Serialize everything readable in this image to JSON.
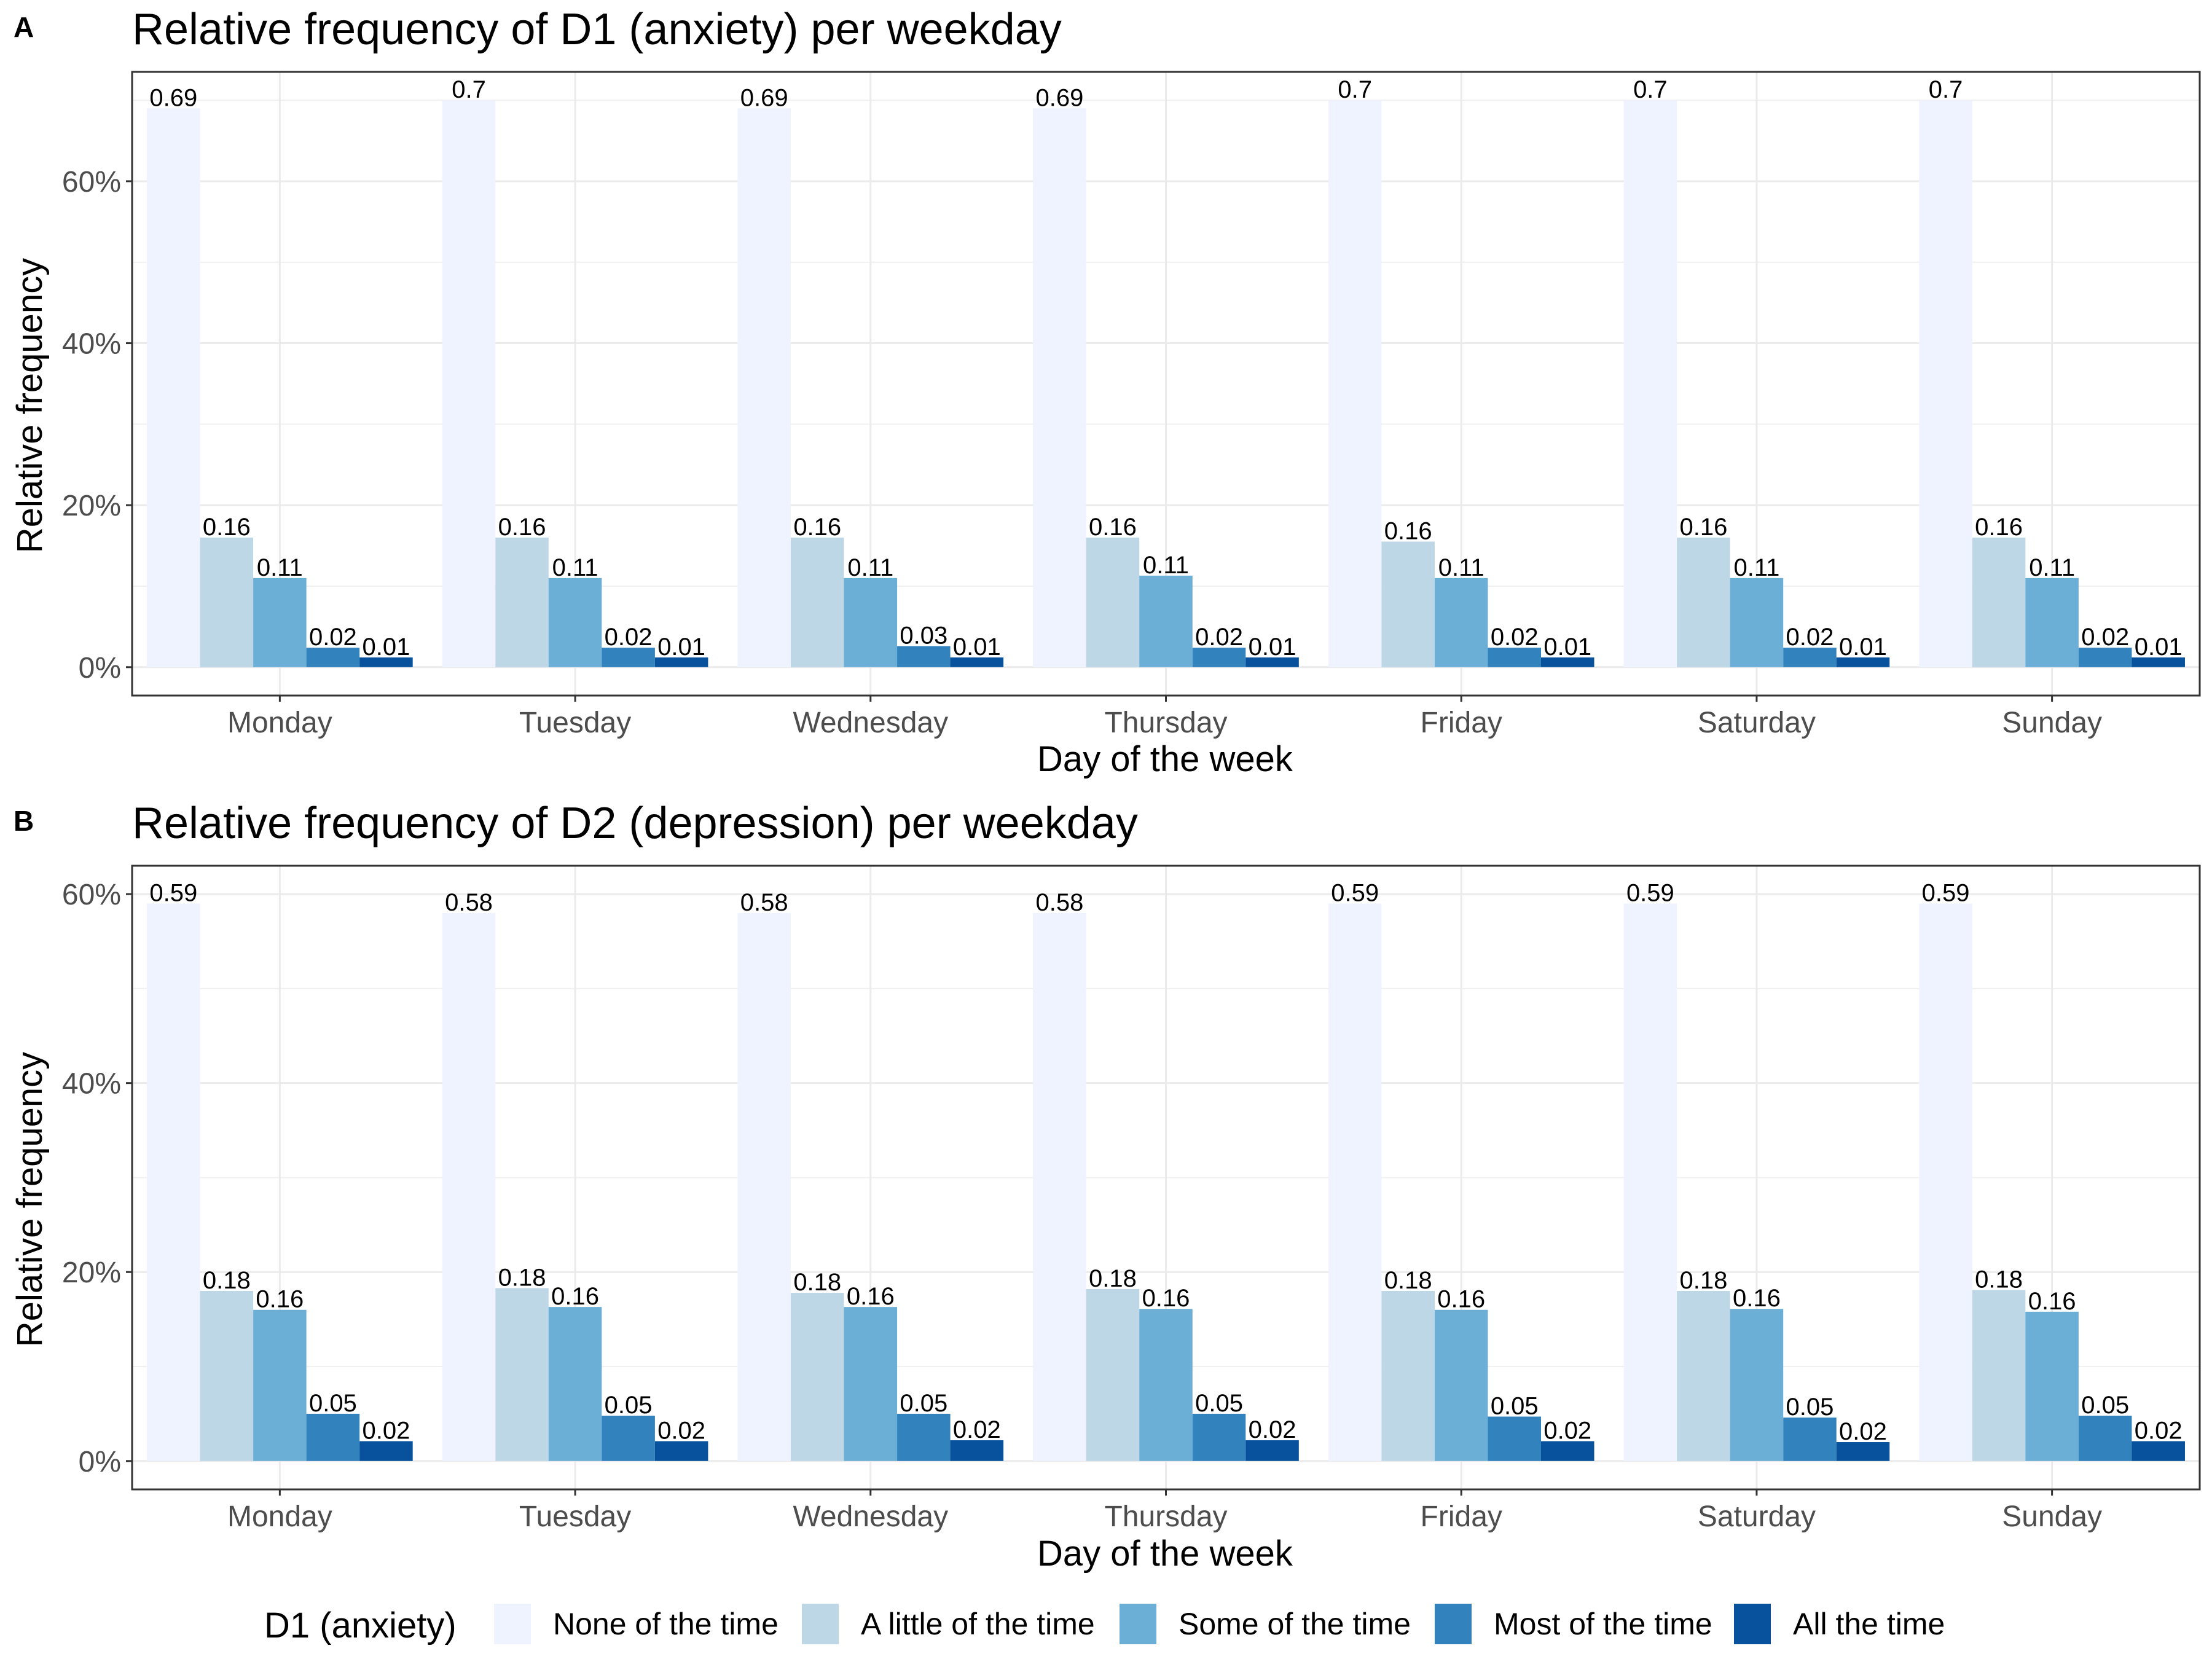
{
  "legend": {
    "title": "D1 (anxiety)",
    "items": [
      {
        "label": "None of the time",
        "color": "#eff3ff"
      },
      {
        "label": "A little of the time",
        "color": "#bdd7e7"
      },
      {
        "label": "Some of the time",
        "color": "#6baed6"
      },
      {
        "label": "Most of the time",
        "color": "#3182bd"
      },
      {
        "label": "All the time",
        "color": "#08519c"
      }
    ]
  },
  "chart_data": [
    {
      "panel": "A",
      "type": "bar",
      "title": "Relative frequency of D1 (anxiety) per weekday",
      "xlabel": "Day of the week",
      "ylabel": "Relative frequency",
      "categories": [
        "Monday",
        "Tuesday",
        "Wednesday",
        "Thursday",
        "Friday",
        "Saturday",
        "Sunday"
      ],
      "ylim": [
        0,
        0.7
      ],
      "yticks": [
        0,
        0.2,
        0.4,
        0.6
      ],
      "ytick_labels": [
        "0%",
        "20%",
        "40%",
        "60%"
      ],
      "grid": true,
      "series": [
        {
          "name": "None of the time",
          "values": [
            0.69,
            0.7,
            0.69,
            0.69,
            0.7,
            0.7,
            0.7
          ],
          "labels": [
            "0.69",
            "0.7",
            "0.69",
            "0.69",
            "0.7",
            "0.7",
            "0.7"
          ]
        },
        {
          "name": "A little of the time",
          "values": [
            0.16,
            0.16,
            0.16,
            0.16,
            0.155,
            0.16,
            0.16
          ],
          "labels": [
            "0.16",
            "0.16",
            "0.16",
            "0.16",
            "0.16",
            "0.16",
            "0.16"
          ]
        },
        {
          "name": "Some of the time",
          "values": [
            0.11,
            0.11,
            0.11,
            0.113,
            0.11,
            0.11,
            0.11
          ],
          "labels": [
            "0.11",
            "0.11",
            "0.11",
            "0.11",
            "0.11",
            "0.11",
            "0.11"
          ]
        },
        {
          "name": "Most of the time",
          "values": [
            0.024,
            0.024,
            0.026,
            0.024,
            0.024,
            0.024,
            0.024
          ],
          "labels": [
            "0.02",
            "0.02",
            "0.03",
            "0.02",
            "0.02",
            "0.02",
            "0.02"
          ]
        },
        {
          "name": "All the time",
          "values": [
            0.012,
            0.012,
            0.012,
            0.012,
            0.012,
            0.012,
            0.012
          ],
          "labels": [
            "0.01",
            "0.01",
            "0.01",
            "0.01",
            "0.01",
            "0.01",
            "0.01"
          ]
        }
      ]
    },
    {
      "panel": "B",
      "type": "bar",
      "title": "Relative frequency of D2 (depression) per weekday",
      "xlabel": "Day of the week",
      "ylabel": "Relative frequency",
      "categories": [
        "Monday",
        "Tuesday",
        "Wednesday",
        "Thursday",
        "Friday",
        "Saturday",
        "Sunday"
      ],
      "ylim": [
        0,
        0.6
      ],
      "yticks": [
        0,
        0.2,
        0.4,
        0.6
      ],
      "ytick_labels": [
        "0%",
        "20%",
        "40%",
        "60%"
      ],
      "grid": true,
      "series": [
        {
          "name": "None of the time",
          "values": [
            0.59,
            0.58,
            0.58,
            0.58,
            0.59,
            0.59,
            0.59
          ],
          "labels": [
            "0.59",
            "0.58",
            "0.58",
            "0.58",
            "0.59",
            "0.59",
            "0.59"
          ]
        },
        {
          "name": "A little of the time",
          "values": [
            0.18,
            0.183,
            0.178,
            0.182,
            0.18,
            0.18,
            0.181
          ],
          "labels": [
            "0.18",
            "0.18",
            "0.18",
            "0.18",
            "0.18",
            "0.18",
            "0.18"
          ]
        },
        {
          "name": "Some of the time",
          "values": [
            0.16,
            0.163,
            0.163,
            0.161,
            0.16,
            0.161,
            0.158
          ],
          "labels": [
            "0.16",
            "0.16",
            "0.16",
            "0.16",
            "0.16",
            "0.16",
            "0.16"
          ]
        },
        {
          "name": "Most of the time",
          "values": [
            0.05,
            0.048,
            0.05,
            0.05,
            0.047,
            0.046,
            0.048
          ],
          "labels": [
            "0.05",
            "0.05",
            "0.05",
            "0.05",
            "0.05",
            "0.05",
            "0.05"
          ]
        },
        {
          "name": "All the time",
          "values": [
            0.021,
            0.021,
            0.022,
            0.022,
            0.021,
            0.02,
            0.021
          ],
          "labels": [
            "0.02",
            "0.02",
            "0.02",
            "0.02",
            "0.02",
            "0.02",
            "0.02"
          ]
        }
      ]
    }
  ]
}
